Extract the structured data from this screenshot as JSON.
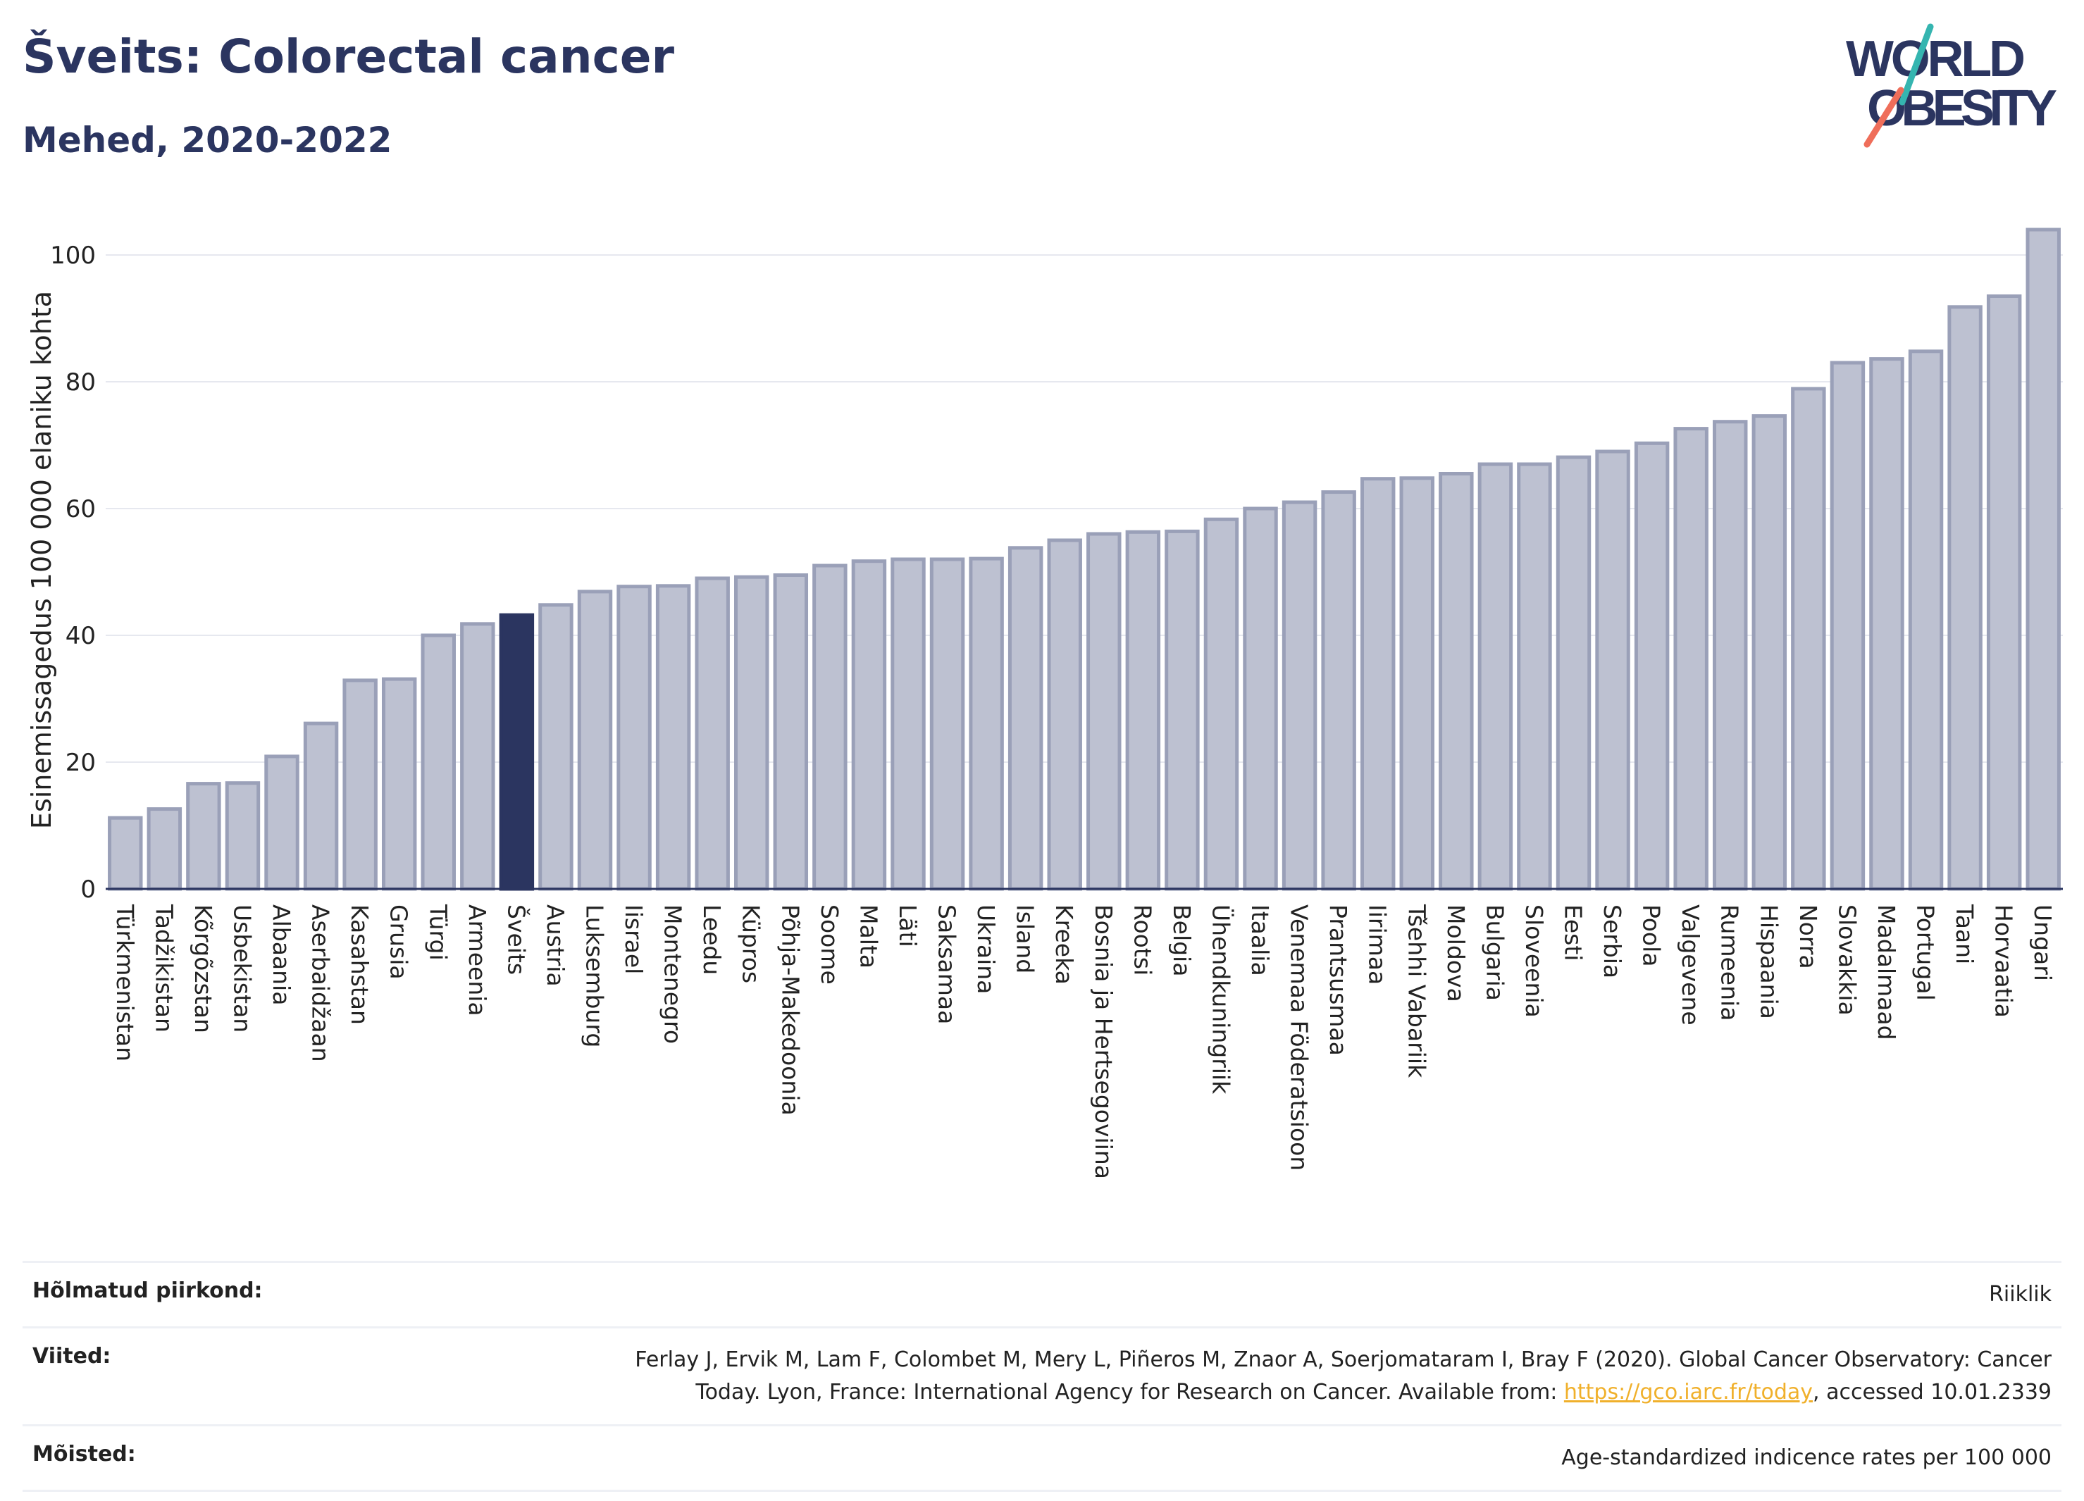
{
  "header": {
    "title": "Šveits: Colorectal cancer",
    "subtitle": "Mehed, 2020-2022"
  },
  "logo": {
    "line1": "WORLD",
    "line2": "OBESITY"
  },
  "colors": {
    "bar": "#bdc1d1",
    "bar_stroke": "#9aa0b8",
    "highlight": "#2b3560",
    "text": "#2b3560",
    "grid": "#e6e8ef"
  },
  "chart_data": {
    "type": "bar",
    "ylabel": "Esinemissagedus 100 000 elaniku kohta",
    "xlabel": "",
    "ylim": [
      0,
      105
    ],
    "yticks": [
      0,
      20,
      40,
      60,
      80,
      100
    ],
    "grid": true,
    "highlight": "Šveits",
    "categories": [
      "Türkmenistan",
      "Tadžikistan",
      "Kõrgõzstan",
      "Usbekistan",
      "Albaania",
      "Aserbaidžaan",
      "Kasahstan",
      "Grusia",
      "Türgi",
      "Armeenia",
      "Šveits",
      "Austria",
      "Luksemburg",
      "Iisrael",
      "Montenegro",
      "Leedu",
      "Küpros",
      "Põhja-Makedoonia",
      "Soome",
      "Malta",
      "Läti",
      "Saksamaa",
      "Ukraina",
      "Island",
      "Kreeka",
      "Bosnia ja Hertsegoviina",
      "Rootsi",
      "Belgia",
      "Ühendkuningriik",
      "Itaalia",
      "Venemaa Föderatsioon",
      "Prantsusmaa",
      "Iirimaa",
      "Tšehhi Vabariik",
      "Moldova",
      "Bulgaria",
      "Sloveenia",
      "Eesti",
      "Serbia",
      "Poola",
      "Valgevene",
      "Rumeenia",
      "Hispaania",
      "Norra",
      "Slovakkia",
      "Madalmaad",
      "Portugal",
      "Taani",
      "Horvaatia",
      "Ungari"
    ],
    "values": [
      11.2,
      12.6,
      16.6,
      16.7,
      20.9,
      26.1,
      32.9,
      33.1,
      40.0,
      41.8,
      43.2,
      44.8,
      46.9,
      47.7,
      47.8,
      49.0,
      49.2,
      49.5,
      51.0,
      51.7,
      52.0,
      52.0,
      52.1,
      53.8,
      55.0,
      56.0,
      56.3,
      56.4,
      58.3,
      60.0,
      61.0,
      62.6,
      64.7,
      64.8,
      65.5,
      67.0,
      67.0,
      68.1,
      69.0,
      70.3,
      72.6,
      73.7,
      74.6,
      78.9,
      83.0,
      83.6,
      84.8,
      91.8,
      93.5,
      104.0
    ]
  },
  "footer": {
    "rows": [
      {
        "label": "Hõlmatud piirkond:",
        "lines": [
          "Riiklik"
        ]
      },
      {
        "label": "Viited:",
        "lines": [
          "Ferlay J, Ervik M, Lam F, Colombet M, Mery L, Piñeros M, Znaor A, Soerjomataram I, Bray F (2020). Global Cancer Observatory: Cancer"
        ],
        "line2_pre": "Today. Lyon, France: International Agency for Research on Cancer. Available from: ",
        "link": "https://gco.iarc.fr/today",
        "line2_post": ", accessed 10.01.2339"
      },
      {
        "label": "Mõisted:",
        "lines": [
          "Age-standardized indicence rates per 100 000"
        ]
      }
    ]
  }
}
